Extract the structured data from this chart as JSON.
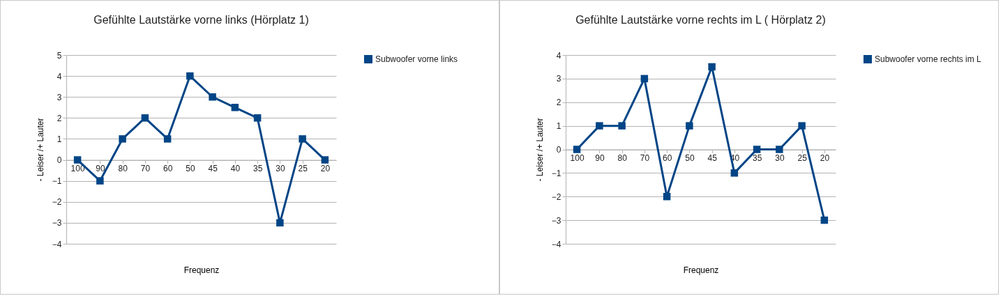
{
  "chart_data": [
    {
      "type": "line",
      "title": "Gefühlte Lautstärke vorne links (Hörplatz 1)",
      "xlabel": "Frequenz",
      "ylabel": "- Leiser /+ Lauter",
      "categories": [
        "100",
        "90",
        "80",
        "70",
        "60",
        "50",
        "45",
        "40",
        "35",
        "30",
        "25",
        "20"
      ],
      "series": [
        {
          "name": "Subwoofer vorne links",
          "color": "#004586",
          "values": [
            0,
            -1,
            1,
            2,
            1,
            4,
            3,
            2.5,
            2,
            -3,
            1,
            0
          ]
        }
      ],
      "ylim": [
        -4,
        5
      ],
      "yticks": [
        -4,
        -3,
        -2,
        -1,
        0,
        1,
        2,
        3,
        4,
        5
      ],
      "grid": "y",
      "legend": "right",
      "marker": "square"
    },
    {
      "type": "line",
      "title": "Gefühlte Lautstärke vorne rechts im L ( Hörplatz 2)",
      "xlabel": "Frequenz",
      "ylabel": "- Leiser /+ Lauter",
      "categories": [
        "100",
        "90",
        "80",
        "70",
        "60",
        "50",
        "45",
        "40",
        "35",
        "30",
        "25",
        "20"
      ],
      "series": [
        {
          "name": "Subwoofer vorne rechts im L",
          "color": "#004586",
          "values": [
            0,
            1,
            1,
            3,
            -2,
            1,
            3.5,
            -1,
            0,
            0,
            1,
            -3
          ]
        }
      ],
      "ylim": [
        -4,
        4
      ],
      "yticks": [
        -4,
        -3,
        -2,
        -1,
        0,
        1,
        2,
        3,
        4
      ],
      "grid": "y",
      "legend": "right",
      "marker": "square"
    }
  ]
}
